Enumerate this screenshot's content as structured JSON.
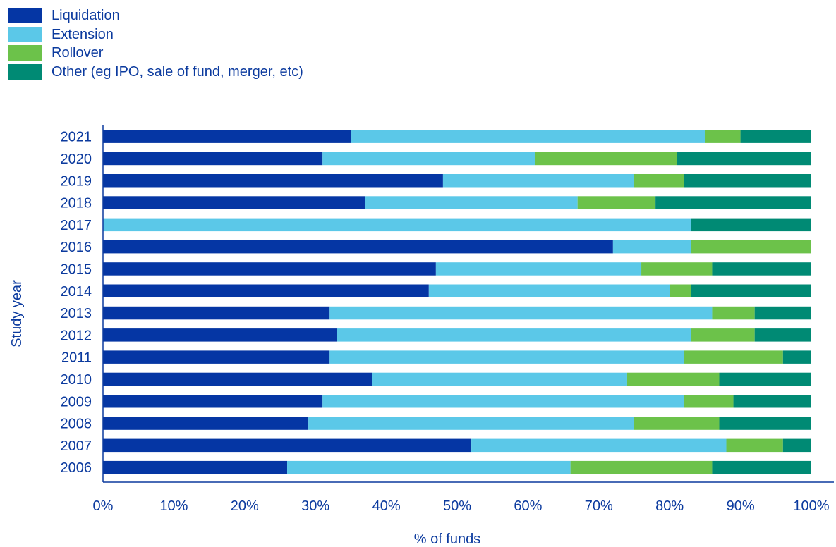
{
  "chart_data": {
    "type": "bar",
    "orientation": "horizontal",
    "stacked": true,
    "xlabel": "% of funds",
    "ylabel": "Study year",
    "xlim": [
      0,
      100
    ],
    "x_ticks": [
      "0%",
      "10%",
      "20%",
      "30%",
      "40%",
      "50%",
      "60%",
      "70%",
      "80%",
      "90%",
      "100%"
    ],
    "grid": false,
    "legend_position": "top-left",
    "categories": [
      "2021",
      "2020",
      "2019",
      "2018",
      "2017",
      "2016",
      "2015",
      "2014",
      "2013",
      "2012",
      "2011",
      "2010",
      "2009",
      "2008",
      "2007",
      "2006"
    ],
    "series": [
      {
        "name": "Liquidation",
        "color": "#0536A4",
        "values": [
          35,
          31,
          48,
          37,
          0,
          72,
          47,
          46,
          32,
          33,
          32,
          38,
          31,
          29,
          52,
          26
        ]
      },
      {
        "name": "Extension",
        "color": "#5BC8E8",
        "values": [
          50,
          30,
          27,
          30,
          83,
          11,
          29,
          34,
          54,
          50,
          50,
          36,
          51,
          46,
          36,
          40
        ]
      },
      {
        "name": "Rollover",
        "color": "#6CC24A",
        "values": [
          5,
          20,
          7,
          11,
          0,
          17,
          10,
          3,
          6,
          9,
          14,
          13,
          7,
          12,
          8,
          20
        ]
      },
      {
        "name": "Other (eg IPO, sale of fund, merger, etc)",
        "color": "#008A74",
        "values": [
          10,
          19,
          18,
          22,
          17,
          0,
          14,
          17,
          8,
          8,
          4,
          13,
          11,
          13,
          4,
          14
        ]
      }
    ]
  }
}
